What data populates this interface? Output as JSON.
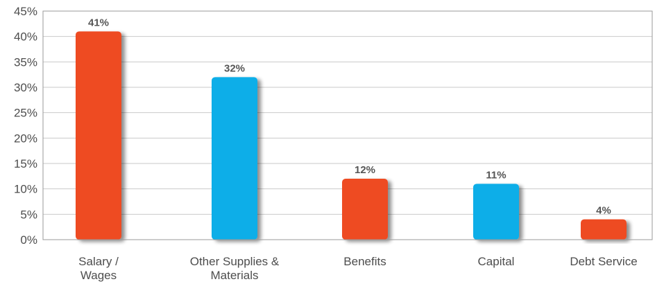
{
  "chart_data": {
    "type": "bar",
    "title": "",
    "xlabel": "",
    "ylabel": "",
    "categories": [
      [
        "Salary /",
        "Wages"
      ],
      [
        "Other Supplies &",
        "Materials"
      ],
      [
        "Benefits"
      ],
      [
        "Capital"
      ],
      [
        "Debt Service"
      ]
    ],
    "values": [
      41,
      32,
      12,
      11,
      4
    ],
    "data_labels": [
      "41%",
      "32%",
      "12%",
      "11%",
      "4%"
    ],
    "colors": [
      "#ee4b22",
      "#10aee8",
      "#ee4b22",
      "#10aee8",
      "#ee4b22"
    ],
    "ylim": [
      0,
      45
    ],
    "yticks": [
      0,
      5,
      10,
      15,
      20,
      25,
      30,
      35,
      40,
      45
    ],
    "ytick_labels": [
      "0%",
      "5%",
      "10%",
      "15%",
      "20%",
      "25%",
      "30%",
      "35%",
      "40%",
      "45%"
    ],
    "grid": true,
    "legend": "none"
  }
}
